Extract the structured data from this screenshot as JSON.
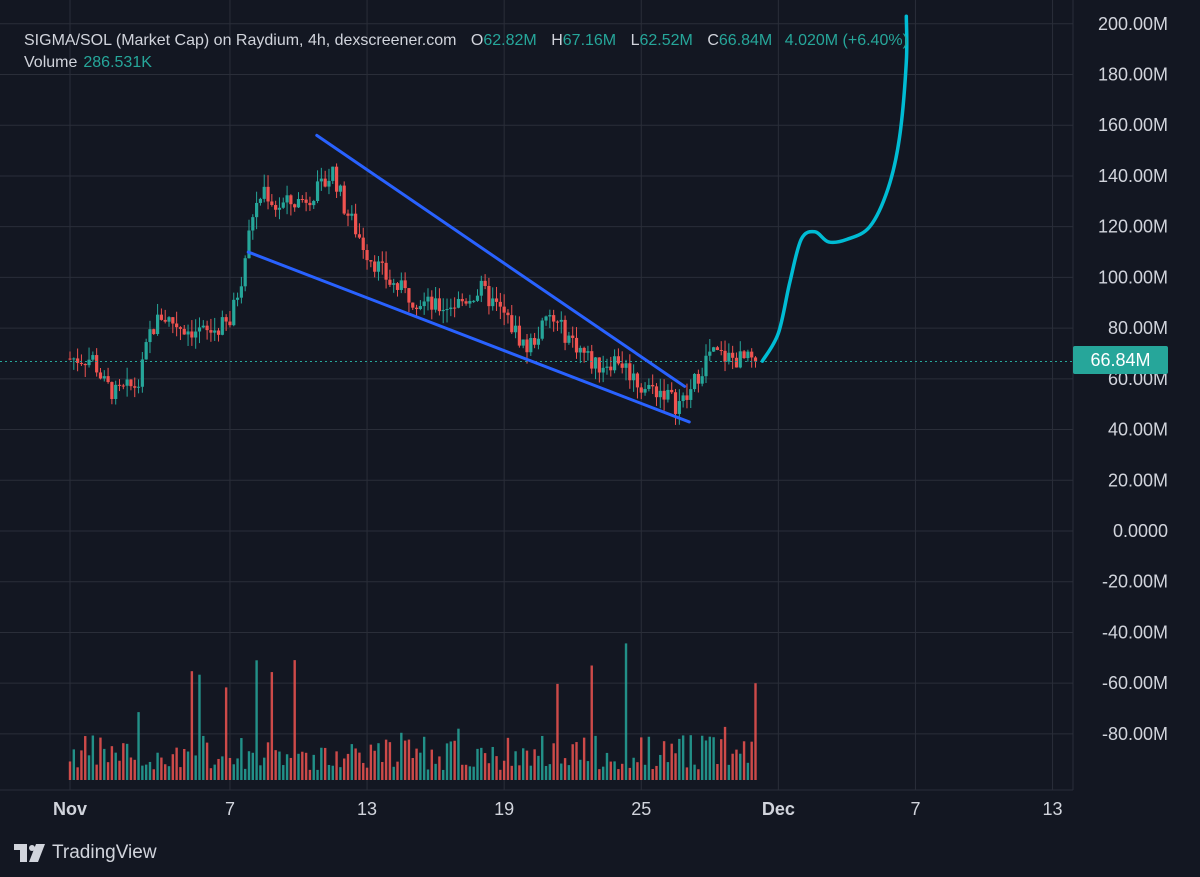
{
  "legend": {
    "symbol": "SIGMA/SOL (Market Cap) on Raydium, 4h, dexscreener.com",
    "open_label": "O",
    "open": "62.82M",
    "high_label": "H",
    "high": "67.16M",
    "low_label": "L",
    "low": "62.52M",
    "close_label": "C",
    "close": "66.84M",
    "change": "4.020M (+6.40%)",
    "volume_label": "Volume",
    "volume": "286.531K"
  },
  "price_tag": "66.84M",
  "brand": "TradingView",
  "colors": {
    "background": "#131722",
    "up": "#26a69a",
    "down": "#ef5350",
    "trendline": "#2962ff",
    "projection": "#00bcd4",
    "grid": "#2a2e39"
  },
  "chart_data": {
    "type": "candlestick",
    "y_ticks": [
      "200.00M",
      "180.00M",
      "160.00M",
      "140.00M",
      "120.00M",
      "100.00M",
      "80.00M",
      "60.00M",
      "40.00M",
      "20.00M",
      "0.0000",
      "-20.00M",
      "-40.00M",
      "-60.00M",
      "-80.00M"
    ],
    "y_tick_values": [
      200,
      180,
      160,
      140,
      120,
      100,
      80,
      60,
      40,
      20,
      0,
      -20,
      -40,
      -60,
      -80
    ],
    "x_ticks": [
      {
        "label": "Nov",
        "day": 0,
        "bold": true
      },
      {
        "label": "7",
        "day": 7
      },
      {
        "label": "13",
        "day": 13
      },
      {
        "label": "19",
        "day": 19
      },
      {
        "label": "25",
        "day": 25
      },
      {
        "label": "Dec",
        "day": 31,
        "bold": true
      },
      {
        "label": "7",
        "day": 37
      },
      {
        "label": "13",
        "day": 43
      }
    ],
    "ylim": [
      -100,
      205
    ],
    "last_price": 66.84,
    "price_anchors": [
      [
        1,
        68
      ],
      [
        1.5,
        58
      ],
      [
        2,
        54
      ],
      [
        3,
        58
      ],
      [
        3.5,
        78
      ],
      [
        4,
        85
      ],
      [
        5,
        80
      ],
      [
        6,
        78
      ],
      [
        7,
        82
      ],
      [
        7.5,
        100
      ],
      [
        8,
        125
      ],
      [
        8.5,
        135
      ],
      [
        9,
        128
      ],
      [
        10,
        130
      ],
      [
        11,
        135
      ],
      [
        11.5,
        142
      ],
      [
        12,
        128
      ],
      [
        13,
        110
      ],
      [
        14,
        98
      ],
      [
        15,
        92
      ],
      [
        16,
        88
      ],
      [
        17,
        90
      ],
      [
        18,
        95
      ],
      [
        19,
        85
      ],
      [
        20,
        72
      ],
      [
        21,
        84
      ],
      [
        22,
        75
      ],
      [
        23,
        65
      ],
      [
        24,
        68
      ],
      [
        25,
        57
      ],
      [
        26,
        55
      ],
      [
        26.5,
        50
      ],
      [
        27,
        52
      ],
      [
        27.5,
        62
      ],
      [
        28,
        70
      ],
      [
        29,
        68
      ],
      [
        30,
        66.8
      ]
    ],
    "trendlines": [
      {
        "name": "upper",
        "start": [
          10.8,
          156
        ],
        "end": [
          26.9,
          57
        ]
      },
      {
        "name": "lower",
        "start": [
          7.8,
          110
        ],
        "end": [
          27.1,
          43
        ]
      }
    ],
    "projection": [
      [
        30.3,
        67
      ],
      [
        31,
        78
      ],
      [
        31.5,
        98
      ],
      [
        32,
        115
      ],
      [
        32.6,
        118
      ],
      [
        33.2,
        114
      ],
      [
        34,
        115
      ],
      [
        35,
        120
      ],
      [
        35.8,
        135
      ],
      [
        36.3,
        155
      ],
      [
        36.6,
        185
      ],
      [
        36.6,
        203
      ]
    ]
  }
}
